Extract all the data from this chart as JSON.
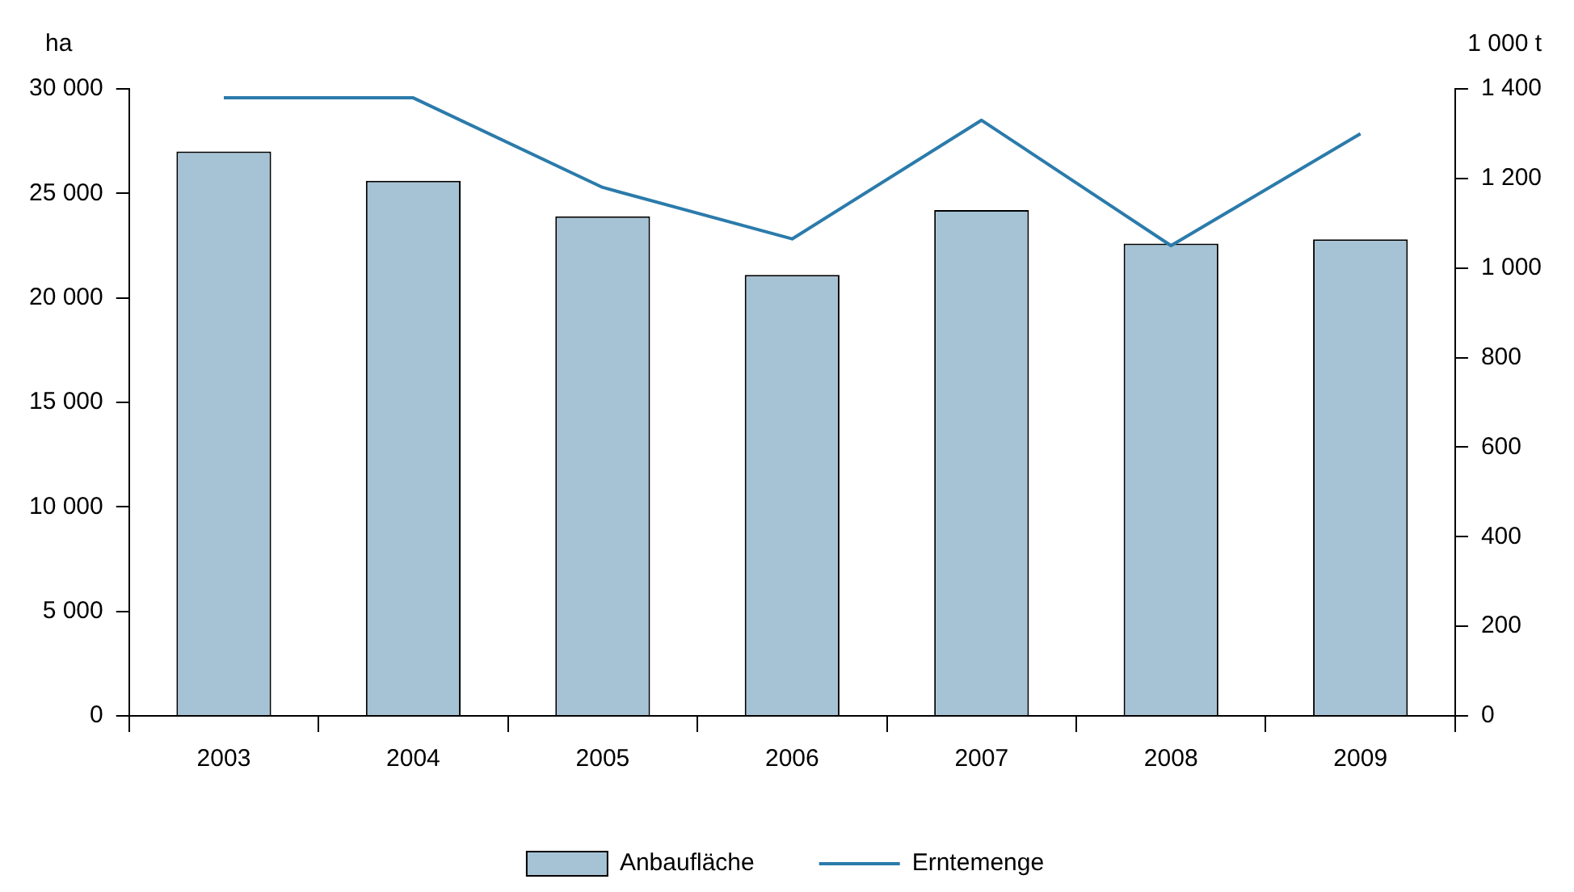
{
  "chart_data": {
    "type": "bar",
    "ylabel": "ha",
    "y2label": "1 000 t",
    "categories": [
      "2003",
      "2004",
      "2005",
      "2006",
      "2007",
      "2008",
      "2009"
    ],
    "series": [
      {
        "name": "Anbaufläche",
        "color": "#a6c3d6",
        "values": [
          27000,
          25600,
          23900,
          21100,
          24200,
          22600,
          22800
        ]
      },
      {
        "name": "Erntemenge",
        "type": "line",
        "axis": "y2",
        "color": "#2b7bab",
        "values": [
          1380,
          1380,
          1180,
          1065,
          1330,
          1050,
          1300
        ]
      }
    ],
    "ylim": [
      0,
      30000
    ],
    "yticks": [
      0,
      {
        "value": 5000,
        "label": "5 000"
      },
      {
        "value": 10000,
        "label": "10 000"
      },
      {
        "value": 15000,
        "label": "15 000"
      },
      {
        "value": 20000,
        "label": "20 000"
      },
      {
        "value": 25000,
        "label": "25 000"
      },
      {
        "value": 30000,
        "label": "30 000"
      }
    ],
    "y2lim": [
      0,
      1400
    ],
    "y2ticks": [
      0,
      200,
      400,
      600,
      800,
      {
        "value": 1000,
        "label": "1 000"
      },
      {
        "value": 1200,
        "label": "1 200"
      },
      {
        "value": 1400,
        "label": "1 400"
      }
    ],
    "grid": false,
    "legend": "bottom",
    "marker": "none"
  }
}
